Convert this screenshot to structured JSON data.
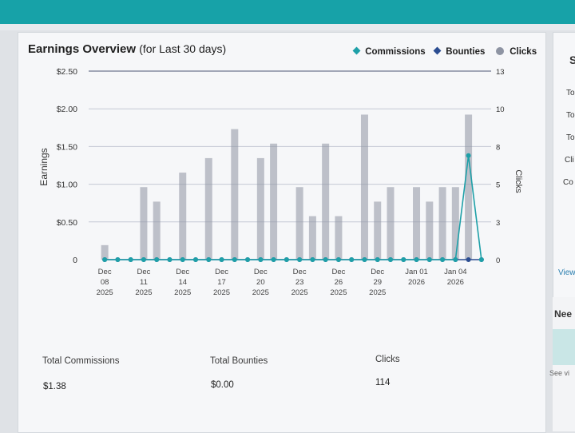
{
  "card": {
    "title": "Earnings Overview",
    "title_suffix": "(for Last 30 days)"
  },
  "legend": [
    {
      "label": "Commissions",
      "color": "#1ea0a8",
      "shape": "diamond"
    },
    {
      "label": "Bounties",
      "color": "#2b4d91",
      "shape": "diamond"
    },
    {
      "label": "Clicks",
      "color": "#8e94a3",
      "shape": "circle"
    }
  ],
  "chart_data": {
    "type": "bar",
    "title": "Earnings Overview (for Last 30 days)",
    "ylabel": "Earnings",
    "y2label": "Clicks",
    "ylim": [
      0,
      2.5
    ],
    "y2lim": [
      0,
      13
    ],
    "y_ticks": [
      "$2.50",
      "$2.00",
      "$1.50",
      "$1.00",
      "$0.50",
      "0"
    ],
    "y2_ticks": [
      "13",
      "10",
      "8",
      "5",
      "3",
      "0"
    ],
    "x_tick_labels": [
      [
        "Dec",
        "08",
        "2025"
      ],
      [
        "Dec",
        "11",
        "2025"
      ],
      [
        "Dec",
        "14",
        "2025"
      ],
      [
        "Dec",
        "17",
        "2025"
      ],
      [
        "Dec",
        "20",
        "2025"
      ],
      [
        "Dec",
        "23",
        "2025"
      ],
      [
        "Dec",
        "26",
        "2025"
      ],
      [
        "Dec",
        "29",
        "2025"
      ],
      [
        "Jan 01",
        "2026"
      ],
      [
        "Jan 04",
        "2026"
      ]
    ],
    "categories": [
      "2025-12-08",
      "2025-12-09",
      "2025-12-10",
      "2025-12-11",
      "2025-12-12",
      "2025-12-13",
      "2025-12-14",
      "2025-12-15",
      "2025-12-16",
      "2025-12-17",
      "2025-12-18",
      "2025-12-19",
      "2025-12-20",
      "2025-12-21",
      "2025-12-22",
      "2025-12-23",
      "2025-12-24",
      "2025-12-25",
      "2025-12-26",
      "2025-12-27",
      "2025-12-28",
      "2025-12-29",
      "2025-12-30",
      "2025-12-31",
      "2026-01-01",
      "2026-01-02",
      "2026-01-03",
      "2026-01-04",
      "2026-01-05",
      "2026-01-06"
    ],
    "grid": true,
    "series": [
      {
        "name": "Clicks",
        "type": "bar",
        "axis": "right",
        "color": "#8e94a3",
        "values": [
          1,
          0,
          0,
          5,
          4,
          0,
          6,
          0,
          7,
          0,
          9,
          0,
          7,
          8,
          0,
          5,
          3,
          8,
          3,
          0,
          10,
          4,
          5,
          0,
          5,
          4,
          5,
          5,
          10,
          0
        ]
      },
      {
        "name": "Commissions",
        "type": "line",
        "axis": "left",
        "color": "#1ea0a8",
        "values": [
          0,
          0,
          0,
          0,
          0,
          0,
          0,
          0,
          0,
          0,
          0,
          0,
          0,
          0,
          0,
          0,
          0,
          0,
          0,
          0,
          0,
          0,
          0,
          0,
          0,
          0,
          0,
          0,
          1.38,
          0
        ]
      },
      {
        "name": "Bounties",
        "type": "line",
        "axis": "left",
        "color": "#2b4d91",
        "values": [
          0,
          0,
          0,
          0,
          0,
          0,
          0,
          0,
          0,
          0,
          0,
          0,
          0,
          0,
          0,
          0,
          0,
          0,
          0,
          0,
          0,
          0,
          0,
          0,
          0,
          0,
          0,
          0,
          0,
          0
        ]
      }
    ]
  },
  "summary": [
    {
      "label": "Total Commissions",
      "value": "$1.38"
    },
    {
      "label": "Total Bounties",
      "value": "$0.00"
    },
    {
      "label": "Clicks",
      "value": "114"
    }
  ],
  "side_panel": {
    "header": "S",
    "rows": [
      "To",
      "To",
      "To",
      "Cli",
      "Co"
    ],
    "link": "View",
    "section2": "Nee",
    "footer_link": "See vi"
  }
}
